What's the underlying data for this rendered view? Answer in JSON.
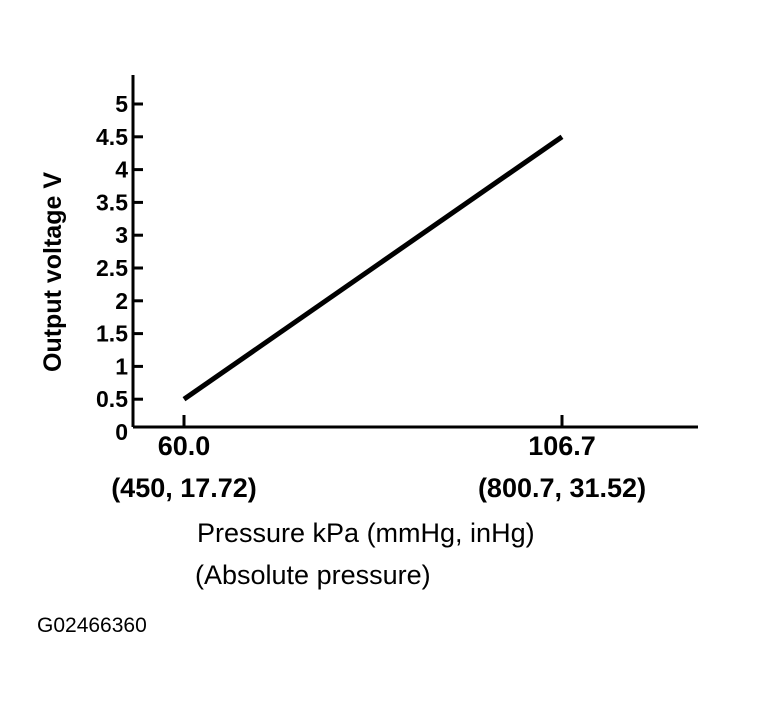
{
  "chart_data": {
    "type": "line",
    "title": "",
    "ylabel": "Output voltage V",
    "xlabel_lines": [
      "Pressure kPa (mmHg, inHg)",
      "(Absolute pressure)"
    ],
    "ylim": [
      0,
      5
    ],
    "yticks": [
      "0",
      "0.5",
      "1",
      "1.5",
      "2",
      "2.5",
      "3",
      "3.5",
      "4",
      "4.5",
      "5"
    ],
    "xticks": [
      {
        "value": 60.0,
        "lines": [
          "60.0",
          "(450, 17.72)"
        ]
      },
      {
        "value": 106.7,
        "lines": [
          "106.7",
          "(800.7, 31.52)"
        ]
      }
    ],
    "series": [
      {
        "x": [
          60.0,
          106.7
        ],
        "y": [
          0.5,
          4.5
        ]
      }
    ],
    "grid": false,
    "line_color": "#000000"
  },
  "figure_id": "G02466360"
}
